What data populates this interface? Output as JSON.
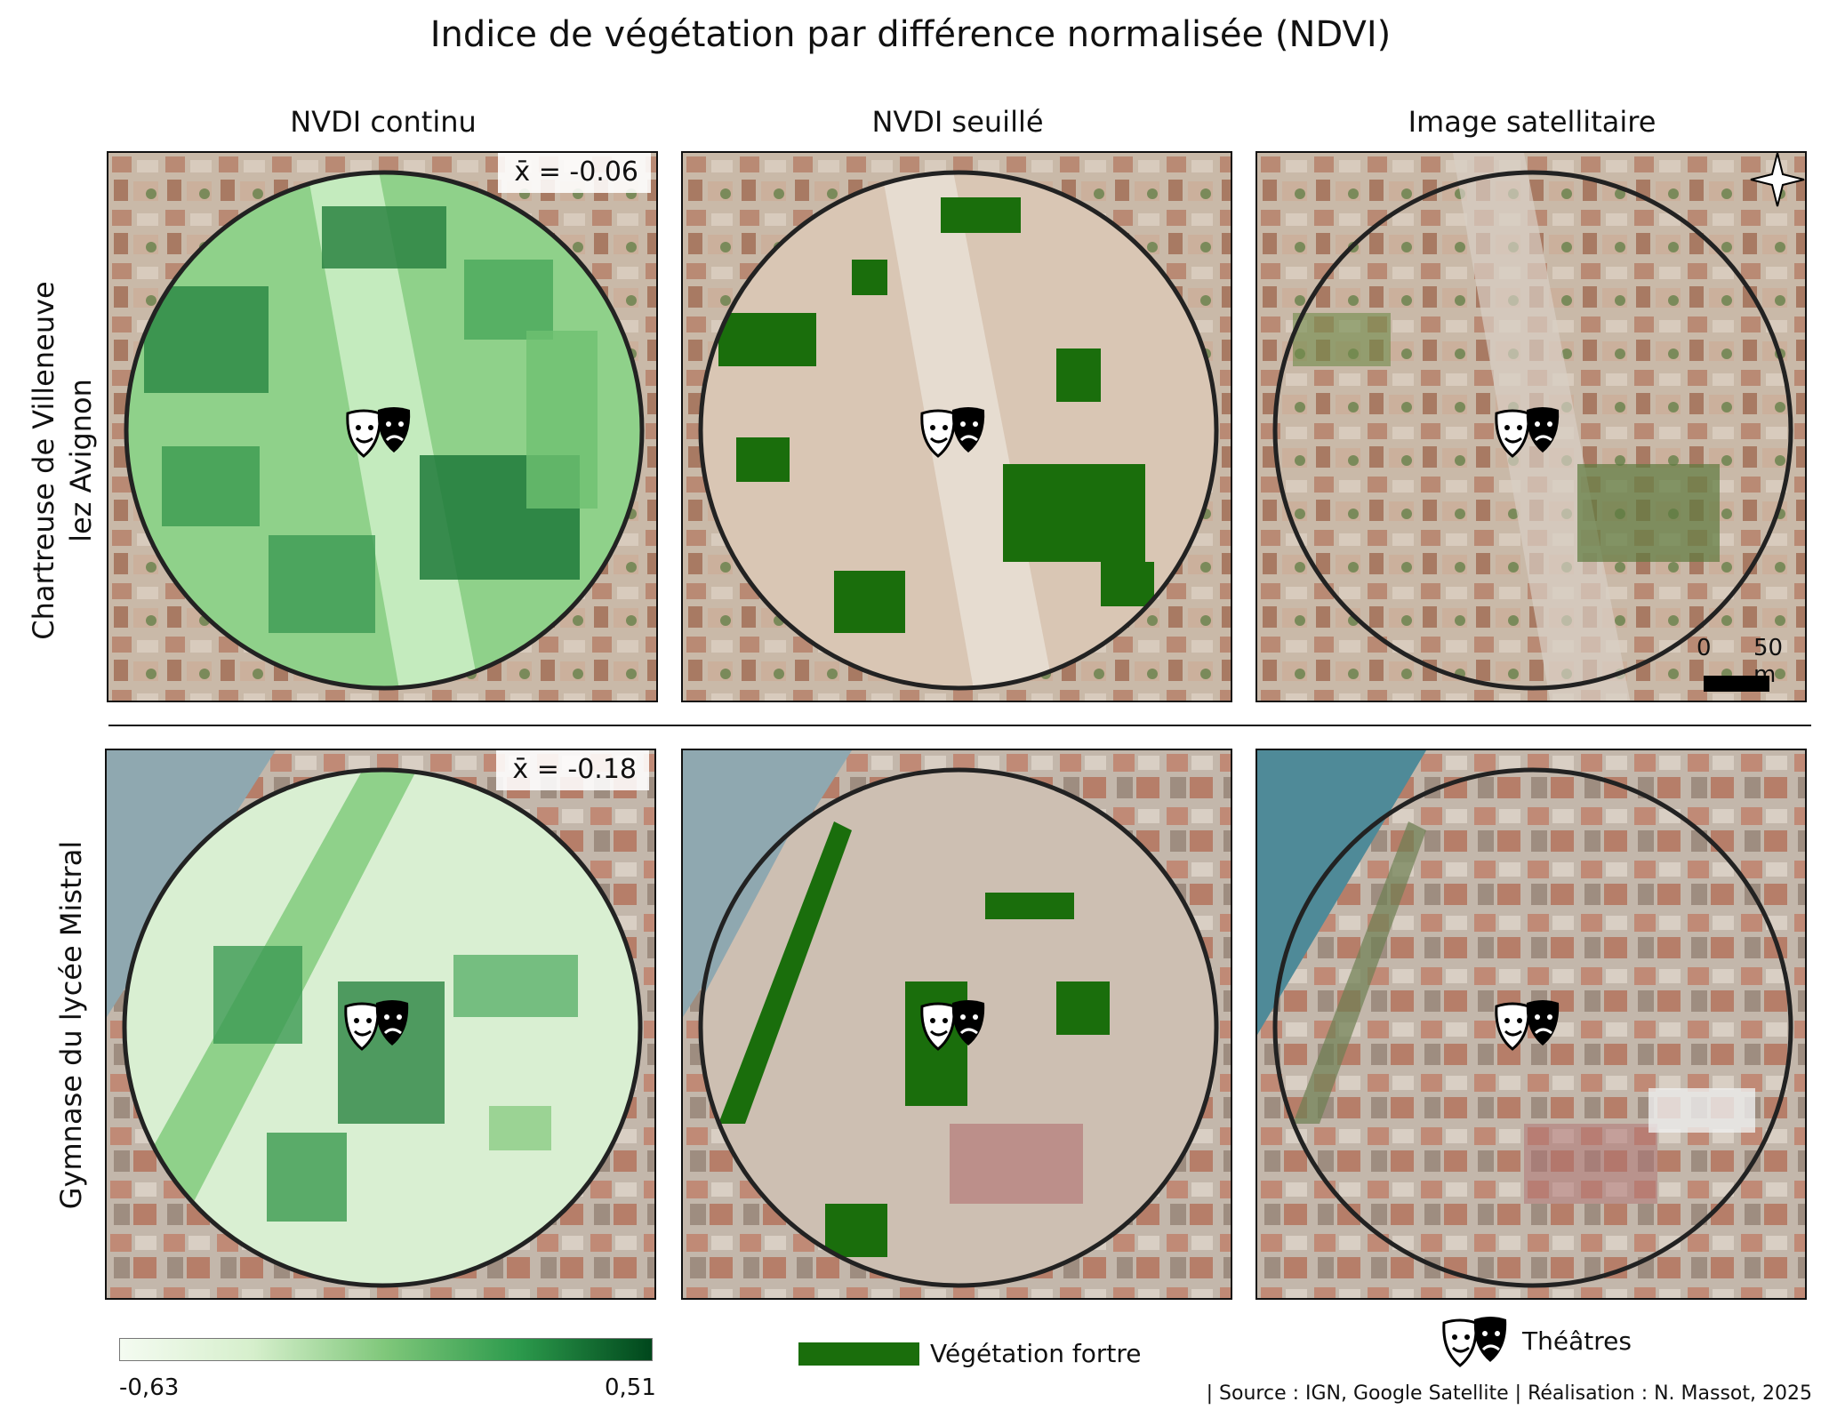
{
  "title": "Indice de végétation par différence normalisée (NDVI)",
  "columns": [
    {
      "label": "NVDI continu"
    },
    {
      "label": "NVDI seuillé"
    },
    {
      "label": "Image satellitaire"
    }
  ],
  "rows": [
    {
      "label_line1": "Chartreuse de Villeneuve",
      "label_line2": "lez Avignon",
      "mean": "x̄ = -0.06"
    },
    {
      "label_line1": "Gymnase du lycée Mistral",
      "label_line2": "",
      "mean": "x̄ = -0.18"
    }
  ],
  "scale": {
    "start": "0",
    "end": "50 m"
  },
  "legend": {
    "ndvi_min": "-0,63",
    "ndvi_max": "0,51",
    "gradient_colors": [
      "#f4fbf1",
      "#d6efcc",
      "#7fc77a",
      "#2c9a4c",
      "#00471c"
    ],
    "strong_vegetation_label": "Végétation fortre",
    "strong_vegetation_color": "#1a6e0c",
    "theatres_label": "Théâtres"
  },
  "source": "| Source : IGN, Google Satellite | Réalisation : N. Massot, 2025",
  "icons": {
    "theatre": "theatre-masks-icon",
    "compass": "north-arrow-icon"
  }
}
